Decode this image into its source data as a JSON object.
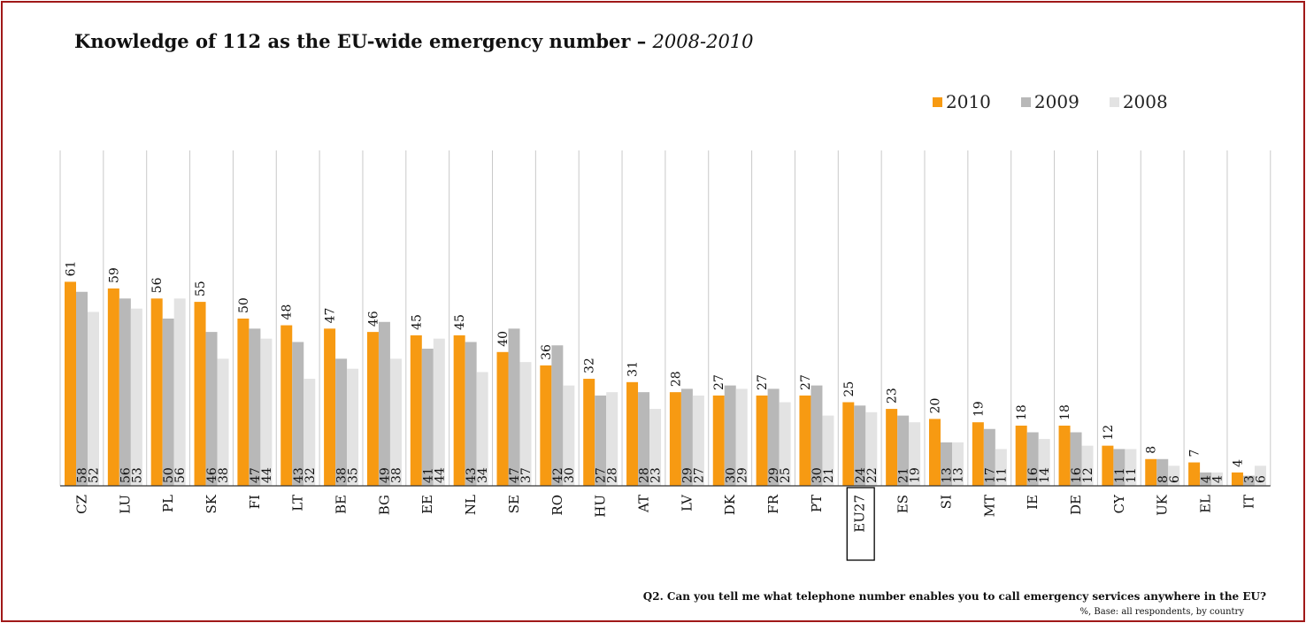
{
  "title": "Knowledge of 112 as the EU-wide emergency number –",
  "title_years": "2008-2010",
  "footnote": "Q2. Can you tell me what telephone number enables you to call emergency services anywhere in the EU?",
  "base_note": "%, Base:  all respondents, by country",
  "chart_data": {
    "type": "bar",
    "categories": [
      "CZ",
      "LU",
      "PL",
      "SK",
      "FI",
      "LT",
      "BE",
      "BG",
      "EE",
      "NL",
      "SE",
      "RO",
      "HU",
      "AT",
      "LV",
      "DK",
      "FR",
      "PT",
      "EU27",
      "ES",
      "SI",
      "MT",
      "IE",
      "DE",
      "CY",
      "UK",
      "EL",
      "IT"
    ],
    "highlighted_category": "EU27",
    "series": [
      {
        "name": "2010",
        "color": "#f79a12",
        "values": [
          61,
          59,
          56,
          55,
          50,
          48,
          47,
          46,
          45,
          45,
          40,
          36,
          32,
          31,
          28,
          27,
          27,
          27,
          25,
          23,
          20,
          19,
          18,
          18,
          12,
          8,
          7,
          4
        ]
      },
      {
        "name": "2009",
        "color": "#b8b8b8",
        "values": [
          58,
          56,
          50,
          46,
          47,
          43,
          38,
          49,
          41,
          43,
          47,
          42,
          27,
          28,
          29,
          30,
          29,
          30,
          24,
          21,
          13,
          17,
          16,
          16,
          11,
          8,
          4,
          3
        ]
      },
      {
        "name": "2008",
        "color": "#e3e3e3",
        "values": [
          52,
          53,
          56,
          38,
          44,
          32,
          35,
          38,
          44,
          34,
          37,
          30,
          28,
          23,
          27,
          29,
          25,
          21,
          22,
          19,
          13,
          11,
          14,
          12,
          11,
          6,
          4,
          6
        ]
      }
    ],
    "ylim": [
      0,
      100
    ],
    "grid": "vertical",
    "legend_position": "top-right",
    "value_labels": true
  }
}
